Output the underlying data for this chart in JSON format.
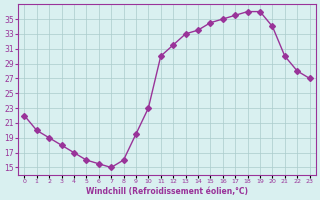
{
  "x": [
    0,
    1,
    2,
    3,
    4,
    5,
    6,
    7,
    8,
    9,
    10,
    11,
    12,
    13,
    14,
    15,
    16,
    17,
    18,
    19,
    20,
    21,
    22,
    23
  ],
  "y": [
    22,
    20,
    19,
    18,
    17,
    16,
    15.5,
    15,
    16,
    19.5,
    23,
    30,
    31.5,
    33,
    33.5,
    34.5,
    35,
    35.5,
    36,
    36,
    34,
    30,
    28,
    27
  ],
  "line_color": "#993399",
  "marker": "D",
  "marker_size": 3,
  "bg_color": "#d9f0f0",
  "grid_color": "#aacccc",
  "xlabel": "Windchill (Refroidissement éolien,°C)",
  "xlabel_color": "#993399",
  "tick_color": "#993399",
  "yticks": [
    15,
    17,
    19,
    21,
    23,
    25,
    27,
    29,
    31,
    33,
    35
  ],
  "ylim": [
    14,
    37
  ],
  "xlim": [
    -0.5,
    23.5
  ]
}
